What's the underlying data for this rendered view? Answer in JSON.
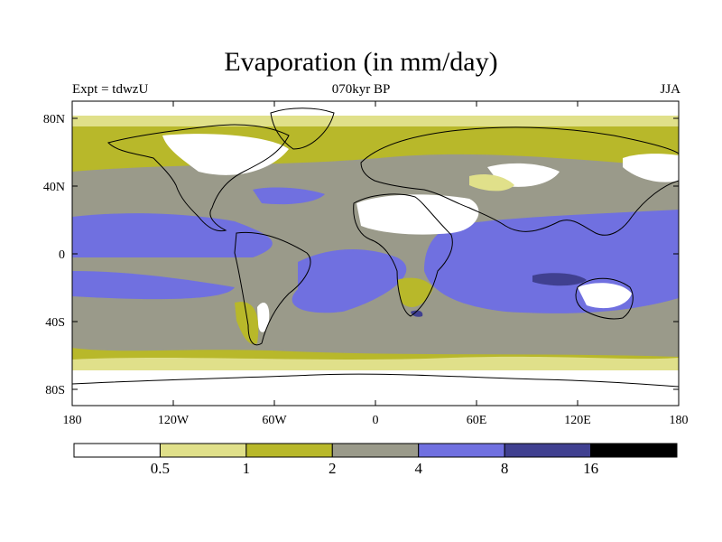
{
  "title": "Evaporation (in mm/day)",
  "subtitle_left": "Expt = tdwzU",
  "subtitle_center": "070kyr BP",
  "subtitle_right": "JJA",
  "lat_ticks": [
    "80N",
    "40N",
    "0",
    "40S",
    "80S"
  ],
  "lon_ticks": [
    "180",
    "120W",
    "60W",
    "0",
    "60E",
    "120E",
    "180"
  ],
  "colorbar": {
    "colors": [
      "#ffffff",
      "#e0e08a",
      "#b8b82a",
      "#9a9a8a",
      "#7070e0",
      "#404090",
      "#000000"
    ],
    "labels": [
      "0.5",
      "1",
      "2",
      "4",
      "8",
      "16"
    ]
  }
}
